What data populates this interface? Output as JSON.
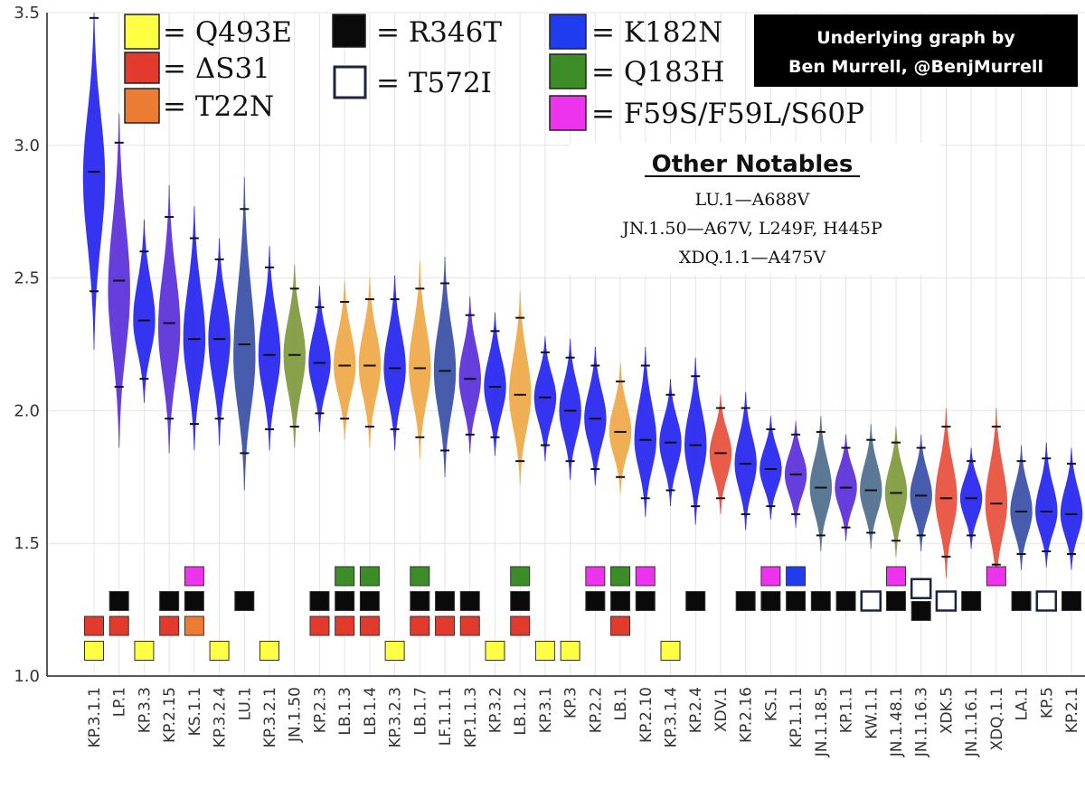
{
  "chart_data": {
    "type": "violin",
    "ylim": [
      1.0,
      3.5
    ],
    "yticks": [
      "1.0",
      "1.5",
      "2.0",
      "2.5",
      "3.0",
      "3.5"
    ],
    "colors": {
      "blue": "#2626f0",
      "navy": "#3a50a8",
      "purple": "#5a2fd8",
      "olive": "#7f9a3c",
      "orange": "#f0a948",
      "red": "#e8503c",
      "slate": "#4f6e8c"
    },
    "mutation_colors": {
      "Q493E": "#ffff44",
      "dS31": "#e33a2e",
      "T22N": "#ec7c34",
      "R346T": "#0a0a0a",
      "T572I": "#ffffff",
      "K182N": "#1f3cf0",
      "Q183H": "#3c8c28",
      "F59": "#ee33ee"
    },
    "violins": [
      {
        "label": "KP.3.1.1",
        "median": 2.9,
        "lo": 2.45,
        "hi": 3.48,
        "min": 2.23,
        "max": 3.5,
        "peak": 2.88,
        "color": "blue",
        "marks": [
          {
            "k": "dS31",
            "level": 2
          },
          {
            "k": "Q493E",
            "level": 1
          }
        ]
      },
      {
        "label": "LP.1",
        "median": 2.49,
        "lo": 2.09,
        "hi": 3.01,
        "min": 1.86,
        "max": 3.12,
        "peak": 2.45,
        "color": "purple",
        "marks": [
          {
            "k": "R346T",
            "level": 3
          },
          {
            "k": "dS31",
            "level": 2
          }
        ]
      },
      {
        "label": "KP.3.3",
        "median": 2.34,
        "lo": 2.12,
        "hi": 2.6,
        "min": 2.03,
        "max": 2.72,
        "peak": 2.34,
        "color": "blue",
        "marks": [
          {
            "k": "Q493E",
            "level": 1
          }
        ]
      },
      {
        "label": "KP.2.15",
        "median": 2.33,
        "lo": 1.97,
        "hi": 2.73,
        "min": 1.84,
        "max": 2.85,
        "peak": 2.31,
        "color": "purple",
        "marks": [
          {
            "k": "R346T",
            "level": 3
          },
          {
            "k": "dS31",
            "level": 2
          }
        ]
      },
      {
        "label": "KS.1.1",
        "median": 2.27,
        "lo": 1.95,
        "hi": 2.65,
        "min": 1.85,
        "max": 2.77,
        "peak": 2.27,
        "color": "blue",
        "marks": [
          {
            "k": "F59",
            "level": 4
          },
          {
            "k": "R346T",
            "level": 3
          },
          {
            "k": "T22N",
            "level": 2
          }
        ]
      },
      {
        "label": "KP.3.2.4",
        "median": 2.27,
        "lo": 1.97,
        "hi": 2.57,
        "min": 1.87,
        "max": 2.65,
        "peak": 2.27,
        "color": "blue",
        "marks": [
          {
            "k": "Q493E",
            "level": 1
          }
        ]
      },
      {
        "label": "LU.1",
        "median": 2.25,
        "lo": 1.84,
        "hi": 2.76,
        "min": 1.7,
        "max": 2.88,
        "peak": 2.2,
        "color": "navy",
        "marks": [
          {
            "k": "R346T",
            "level": 3
          }
        ]
      },
      {
        "label": "KP.3.2.1",
        "median": 2.21,
        "lo": 1.93,
        "hi": 2.54,
        "min": 1.85,
        "max": 2.62,
        "peak": 2.21,
        "color": "blue",
        "marks": [
          {
            "k": "Q493E",
            "level": 1
          }
        ]
      },
      {
        "label": "JN.1.50",
        "median": 2.21,
        "lo": 1.94,
        "hi": 2.46,
        "min": 1.86,
        "max": 2.55,
        "peak": 2.21,
        "color": "olive",
        "marks": []
      },
      {
        "label": "KP.2.3",
        "median": 2.18,
        "lo": 1.99,
        "hi": 2.39,
        "min": 1.92,
        "max": 2.47,
        "peak": 2.18,
        "color": "blue",
        "marks": [
          {
            "k": "R346T",
            "level": 3
          },
          {
            "k": "dS31",
            "level": 2
          }
        ]
      },
      {
        "label": "LB.1.3",
        "median": 2.17,
        "lo": 1.97,
        "hi": 2.41,
        "min": 1.89,
        "max": 2.49,
        "peak": 2.17,
        "color": "orange",
        "marks": [
          {
            "k": "Q183H",
            "level": 4
          },
          {
            "k": "R346T",
            "level": 3
          },
          {
            "k": "dS31",
            "level": 2
          }
        ]
      },
      {
        "label": "LB.1.4",
        "median": 2.17,
        "lo": 1.94,
        "hi": 2.42,
        "min": 1.86,
        "max": 2.5,
        "peak": 2.17,
        "color": "orange",
        "marks": [
          {
            "k": "Q183H",
            "level": 4
          },
          {
            "k": "R346T",
            "level": 3
          },
          {
            "k": "dS31",
            "level": 2
          }
        ]
      },
      {
        "label": "KP.3.2.3",
        "median": 2.16,
        "lo": 1.93,
        "hi": 2.42,
        "min": 1.85,
        "max": 2.51,
        "peak": 2.16,
        "color": "blue",
        "marks": [
          {
            "k": "Q493E",
            "level": 1
          }
        ]
      },
      {
        "label": "LB.1.7",
        "median": 2.16,
        "lo": 1.9,
        "hi": 2.46,
        "min": 1.82,
        "max": 2.56,
        "peak": 2.16,
        "color": "orange",
        "marks": [
          {
            "k": "Q183H",
            "level": 4
          },
          {
            "k": "R346T",
            "level": 3
          },
          {
            "k": "dS31",
            "level": 2
          }
        ]
      },
      {
        "label": "LF.1.1.1",
        "median": 2.15,
        "lo": 1.85,
        "hi": 2.48,
        "min": 1.75,
        "max": 2.58,
        "peak": 2.15,
        "color": "navy",
        "marks": [
          {
            "k": "R346T",
            "level": 3
          },
          {
            "k": "dS31",
            "level": 2
          }
        ]
      },
      {
        "label": "KP.1.1.3",
        "median": 2.12,
        "lo": 1.91,
        "hi": 2.36,
        "min": 1.84,
        "max": 2.43,
        "peak": 2.12,
        "color": "purple",
        "marks": [
          {
            "k": "R346T",
            "level": 3
          },
          {
            "k": "dS31",
            "level": 2
          }
        ]
      },
      {
        "label": "KP.3.2",
        "median": 2.09,
        "lo": 1.9,
        "hi": 2.3,
        "min": 1.83,
        "max": 2.37,
        "peak": 2.09,
        "color": "blue",
        "marks": [
          {
            "k": "Q493E",
            "level": 1
          }
        ]
      },
      {
        "label": "LB.1.2",
        "median": 2.06,
        "lo": 1.81,
        "hi": 2.35,
        "min": 1.72,
        "max": 2.45,
        "peak": 2.06,
        "color": "orange",
        "marks": [
          {
            "k": "Q183H",
            "level": 4
          },
          {
            "k": "R346T",
            "level": 3
          },
          {
            "k": "dS31",
            "level": 2
          }
        ]
      },
      {
        "label": "KP.3.1",
        "median": 2.05,
        "lo": 1.87,
        "hi": 2.22,
        "min": 1.81,
        "max": 2.28,
        "peak": 2.05,
        "color": "blue",
        "marks": [
          {
            "k": "Q493E",
            "level": 1
          }
        ]
      },
      {
        "label": "KP.3",
        "median": 2.0,
        "lo": 1.81,
        "hi": 2.2,
        "min": 1.74,
        "max": 2.27,
        "peak": 2.0,
        "color": "blue",
        "marks": [
          {
            "k": "Q493E",
            "level": 1
          }
        ]
      },
      {
        "label": "KP.2.2",
        "median": 1.97,
        "lo": 1.78,
        "hi": 2.17,
        "min": 1.72,
        "max": 2.24,
        "peak": 1.97,
        "color": "blue",
        "marks": [
          {
            "k": "F59",
            "level": 4
          },
          {
            "k": "R346T",
            "level": 3
          }
        ]
      },
      {
        "label": "LB.1",
        "median": 1.92,
        "lo": 1.75,
        "hi": 2.11,
        "min": 1.69,
        "max": 2.18,
        "peak": 1.92,
        "color": "orange",
        "marks": [
          {
            "k": "Q183H",
            "level": 4
          },
          {
            "k": "R346T",
            "level": 3
          },
          {
            "k": "dS31",
            "level": 2
          }
        ]
      },
      {
        "label": "KP.2.10",
        "median": 1.89,
        "lo": 1.67,
        "hi": 2.17,
        "min": 1.6,
        "max": 2.24,
        "peak": 1.89,
        "color": "blue",
        "marks": [
          {
            "k": "F59",
            "level": 4
          },
          {
            "k": "R346T",
            "level": 3
          }
        ]
      },
      {
        "label": "KP.3.1.4",
        "median": 1.88,
        "lo": 1.7,
        "hi": 2.06,
        "min": 1.64,
        "max": 2.12,
        "peak": 1.88,
        "color": "blue",
        "marks": [
          {
            "k": "Q493E",
            "level": 1
          }
        ]
      },
      {
        "label": "KP.2.4",
        "median": 1.87,
        "lo": 1.64,
        "hi": 2.13,
        "min": 1.57,
        "max": 2.2,
        "peak": 1.87,
        "color": "blue",
        "marks": [
          {
            "k": "R346T",
            "level": 3
          }
        ]
      },
      {
        "label": "XDV.1",
        "median": 1.84,
        "lo": 1.67,
        "hi": 2.01,
        "min": 1.61,
        "max": 2.06,
        "peak": 1.84,
        "color": "red",
        "marks": []
      },
      {
        "label": "KP.2.16",
        "median": 1.8,
        "lo": 1.61,
        "hi": 2.01,
        "min": 1.55,
        "max": 2.07,
        "peak": 1.8,
        "color": "blue",
        "marks": [
          {
            "k": "R346T",
            "level": 3
          }
        ]
      },
      {
        "label": "KS.1",
        "median": 1.78,
        "lo": 1.64,
        "hi": 1.93,
        "min": 1.59,
        "max": 1.98,
        "peak": 1.78,
        "color": "blue",
        "marks": [
          {
            "k": "F59",
            "level": 4
          },
          {
            "k": "R346T",
            "level": 3
          }
        ]
      },
      {
        "label": "KP.1.1.1",
        "median": 1.76,
        "lo": 1.61,
        "hi": 1.91,
        "min": 1.56,
        "max": 1.96,
        "peak": 1.76,
        "color": "purple",
        "marks": [
          {
            "k": "K182N",
            "level": 4
          },
          {
            "k": "R346T",
            "level": 3
          }
        ]
      },
      {
        "label": "JN.1.18.5",
        "median": 1.71,
        "lo": 1.53,
        "hi": 1.92,
        "min": 1.47,
        "max": 1.98,
        "peak": 1.71,
        "color": "slate",
        "marks": [
          {
            "k": "R346T",
            "level": 3
          }
        ]
      },
      {
        "label": "KP.1.1",
        "median": 1.71,
        "lo": 1.56,
        "hi": 1.86,
        "min": 1.51,
        "max": 1.91,
        "peak": 1.71,
        "color": "purple",
        "marks": [
          {
            "k": "R346T",
            "level": 3
          }
        ]
      },
      {
        "label": "KW.1.1",
        "median": 1.7,
        "lo": 1.54,
        "hi": 1.89,
        "min": 1.48,
        "max": 1.95,
        "peak": 1.7,
        "color": "slate",
        "marks": [
          {
            "k": "T572I",
            "level": 3
          }
        ]
      },
      {
        "label": "JN.1.48.1",
        "median": 1.69,
        "lo": 1.51,
        "hi": 1.88,
        "min": 1.45,
        "max": 1.94,
        "peak": 1.69,
        "color": "olive",
        "marks": [
          {
            "k": "F59",
            "level": 4
          },
          {
            "k": "R346T",
            "level": 3
          }
        ]
      },
      {
        "label": "JN.1.16.3",
        "median": 1.68,
        "lo": 1.53,
        "hi": 1.86,
        "min": 1.47,
        "max": 1.91,
        "peak": 1.68,
        "color": "navy",
        "marks": [
          {
            "k": "T572I",
            "level": 3.5
          },
          {
            "k": "R346T",
            "level": 2.6
          }
        ]
      },
      {
        "label": "XDK.5",
        "median": 1.67,
        "lo": 1.45,
        "hi": 1.94,
        "min": 1.37,
        "max": 2.01,
        "peak": 1.67,
        "color": "red",
        "marks": [
          {
            "k": "T572I",
            "level": 3
          }
        ]
      },
      {
        "label": "JN.1.16.1",
        "median": 1.67,
        "lo": 1.53,
        "hi": 1.81,
        "min": 1.48,
        "max": 1.86,
        "peak": 1.67,
        "color": "blue",
        "marks": [
          {
            "k": "R346T",
            "level": 3
          }
        ]
      },
      {
        "label": "XDQ.1.1",
        "median": 1.65,
        "lo": 1.42,
        "hi": 1.94,
        "min": 1.34,
        "max": 2.01,
        "peak": 1.65,
        "color": "red",
        "marks": [
          {
            "k": "F59",
            "level": 4
          }
        ]
      },
      {
        "label": "LA.1",
        "median": 1.62,
        "lo": 1.46,
        "hi": 1.81,
        "min": 1.4,
        "max": 1.87,
        "peak": 1.62,
        "color": "navy",
        "marks": [
          {
            "k": "R346T",
            "level": 3
          }
        ]
      },
      {
        "label": "KP.5",
        "median": 1.62,
        "lo": 1.47,
        "hi": 1.82,
        "min": 1.41,
        "max": 1.88,
        "peak": 1.62,
        "color": "blue",
        "marks": [
          {
            "k": "T572I",
            "level": 3
          }
        ]
      },
      {
        "label": "KP.2.1",
        "median": 1.61,
        "lo": 1.46,
        "hi": 1.8,
        "min": 1.4,
        "max": 1.86,
        "peak": 1.61,
        "color": "blue",
        "marks": [
          {
            "k": "R346T",
            "level": 3
          }
        ]
      }
    ],
    "legend": [
      {
        "key": "Q493E",
        "text": "= Q493E"
      },
      {
        "key": "dS31",
        "text": "= ΔS31"
      },
      {
        "key": "T22N",
        "text": "= T22N"
      },
      {
        "key": "R346T",
        "text": "= R346T"
      },
      {
        "key": "T572I",
        "text": "= T572I"
      },
      {
        "key": "K182N",
        "text": "= K182N"
      },
      {
        "key": "Q183H",
        "text": "= Q183H"
      },
      {
        "key": "F59",
        "text": "= F59S/F59L/S60P"
      }
    ],
    "credit": [
      "Underlying graph by",
      "Ben Murrell, @BenjMurrell"
    ],
    "notables": {
      "title": "Other Notables",
      "lines": [
        "LU.1—A688V",
        "JN.1.50—A67V, L249F, H445P",
        "XDQ.1.1—A475V"
      ]
    }
  }
}
